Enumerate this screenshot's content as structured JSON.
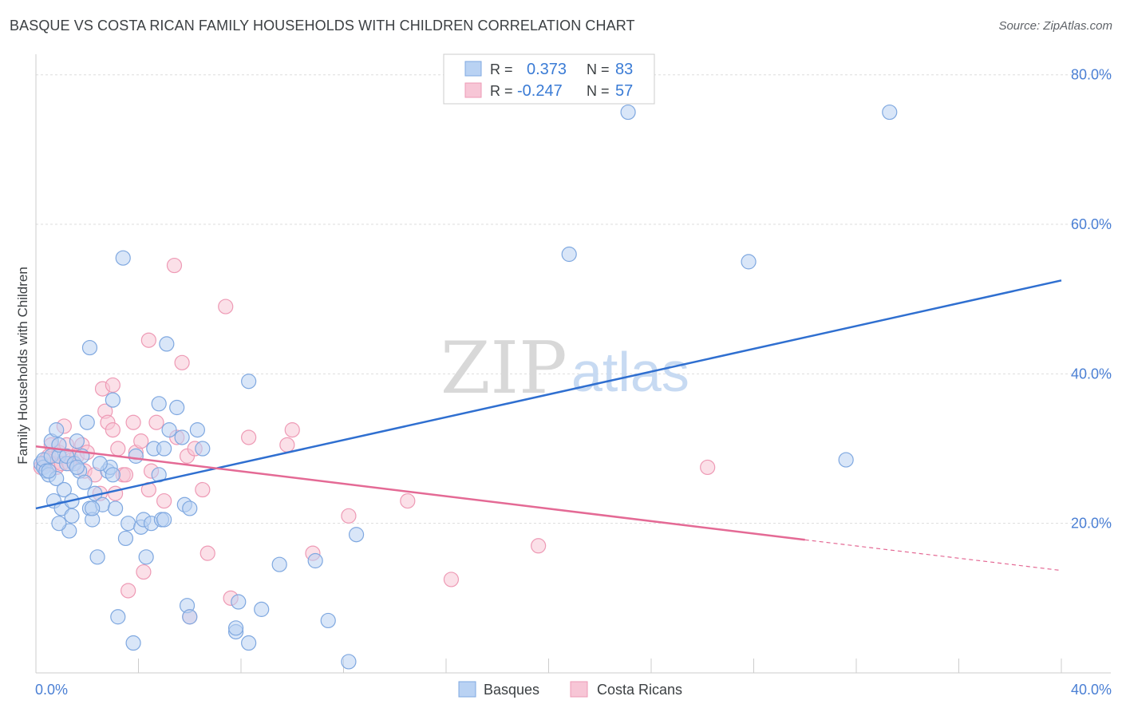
{
  "header": {
    "title": "BASQUE VS COSTA RICAN FAMILY HOUSEHOLDS WITH CHILDREN CORRELATION CHART",
    "source": "Source: ZipAtlas.com"
  },
  "watermark": {
    "zip": "ZIP",
    "atlas": "atlas"
  },
  "stats": {
    "blue": {
      "r_label": "R =",
      "r_value": "0.373",
      "n_label": "N =",
      "n_value": "83"
    },
    "pink": {
      "r_label": "R =",
      "r_value": "-0.247",
      "n_label": "N =",
      "n_value": "57"
    }
  },
  "legend": {
    "series1": "Basques",
    "series2": "Costa Ricans"
  },
  "colors": {
    "blue_fill": "#b9d2f3",
    "blue_stroke": "#7fa8e0",
    "blue_line": "#2f6fd0",
    "pink_fill": "#f7c6d6",
    "pink_stroke": "#ee9ab5",
    "pink_line": "#e46a95",
    "grid": "#dddddd",
    "tick_text": "#4a7fd4"
  },
  "chart_data": {
    "type": "scatter",
    "title": "BASQUE VS COSTA RICAN FAMILY HOUSEHOLDS WITH CHILDREN CORRELATION CHART",
    "xlabel": "",
    "ylabel": "Family Households with Children",
    "xlim": [
      0,
      40
    ],
    "ylim": [
      0,
      82
    ],
    "x_tick_labels": [
      "0.0%",
      "40.0%"
    ],
    "y_ticks": [
      20,
      40,
      60,
      80
    ],
    "y_tick_labels": [
      "20.0%",
      "40.0%",
      "60.0%",
      "80.0%"
    ],
    "grid": true,
    "series": [
      {
        "name": "Basques",
        "r": 0.373,
        "n": 83,
        "trend": {
          "x0": 0,
          "y0": 22.0,
          "x1": 40,
          "y1": 52.5
        },
        "points": [
          [
            0.2,
            28
          ],
          [
            0.3,
            27.5
          ],
          [
            0.3,
            28.5
          ],
          [
            0.4,
            27
          ],
          [
            0.5,
            26.5
          ],
          [
            0.6,
            29
          ],
          [
            0.6,
            31
          ],
          [
            0.7,
            23
          ],
          [
            0.8,
            26
          ],
          [
            0.8,
            32.5
          ],
          [
            0.9,
            29
          ],
          [
            0.9,
            30.5
          ],
          [
            1.0,
            22
          ],
          [
            1.1,
            24.5
          ],
          [
            1.2,
            28
          ],
          [
            1.2,
            29
          ],
          [
            1.3,
            19
          ],
          [
            1.4,
            21
          ],
          [
            1.4,
            23
          ],
          [
            1.5,
            28
          ],
          [
            1.6,
            31
          ],
          [
            1.7,
            27
          ],
          [
            1.8,
            29
          ],
          [
            1.9,
            25.5
          ],
          [
            2.1,
            22
          ],
          [
            2.2,
            20.5
          ],
          [
            2.3,
            24
          ],
          [
            2.4,
            15.5
          ],
          [
            2.6,
            22.5
          ],
          [
            2.8,
            27
          ],
          [
            2.9,
            27.5
          ],
          [
            3.0,
            36.5
          ],
          [
            3.1,
            22
          ],
          [
            3.4,
            55.5
          ],
          [
            3.5,
            18
          ],
          [
            3.6,
            20
          ],
          [
            3.8,
            4
          ],
          [
            3.9,
            29
          ],
          [
            4.1,
            19.5
          ],
          [
            4.2,
            20.5
          ],
          [
            4.3,
            15.5
          ],
          [
            4.5,
            20
          ],
          [
            4.6,
            30
          ],
          [
            4.8,
            36
          ],
          [
            4.9,
            20.5
          ],
          [
            5.0,
            30
          ],
          [
            5.1,
            44
          ],
          [
            5.2,
            32.5
          ],
          [
            5.5,
            35.5
          ],
          [
            5.7,
            31.5
          ],
          [
            5.8,
            22.5
          ],
          [
            5.9,
            9
          ],
          [
            6.0,
            7.5
          ],
          [
            6.3,
            32.5
          ],
          [
            7.8,
            5.5
          ],
          [
            7.8,
            6
          ],
          [
            7.9,
            9.5
          ],
          [
            8.3,
            4
          ],
          [
            8.3,
            39
          ],
          [
            8.8,
            8.5
          ],
          [
            9.5,
            14.5
          ],
          [
            10.9,
            15
          ],
          [
            11.4,
            7
          ],
          [
            12.2,
            1.5
          ],
          [
            12.5,
            18.5
          ],
          [
            2.1,
            43.5
          ],
          [
            2.2,
            22
          ],
          [
            3.0,
            26.5
          ],
          [
            1.6,
            27.5
          ],
          [
            2.0,
            33.5
          ],
          [
            5.0,
            20.5
          ],
          [
            4.8,
            26.5
          ],
          [
            2.5,
            28
          ],
          [
            0.5,
            27
          ],
          [
            6.0,
            22
          ],
          [
            6.5,
            30
          ],
          [
            3.2,
            7.5
          ],
          [
            23.1,
            75
          ],
          [
            33.3,
            75
          ],
          [
            20.8,
            56
          ],
          [
            27.8,
            55
          ],
          [
            31.6,
            28.5
          ],
          [
            0.9,
            20
          ]
        ]
      },
      {
        "name": "Costa Ricans",
        "r": -0.247,
        "n": 57,
        "trend": {
          "x0": 0,
          "y0": 30.3,
          "x1": 30,
          "y1": 17.8,
          "dash_to_x": 40,
          "dash_to_y": 13.7
        },
        "points": [
          [
            0.2,
            27.5
          ],
          [
            0.3,
            28
          ],
          [
            0.5,
            29
          ],
          [
            0.6,
            30.5
          ],
          [
            0.7,
            28
          ],
          [
            0.8,
            27.5
          ],
          [
            0.9,
            29.5
          ],
          [
            1.0,
            28
          ],
          [
            1.1,
            33
          ],
          [
            1.2,
            30.5
          ],
          [
            1.4,
            28.5
          ],
          [
            1.6,
            29
          ],
          [
            1.8,
            30.5
          ],
          [
            1.9,
            27
          ],
          [
            2.0,
            29.5
          ],
          [
            2.3,
            26.5
          ],
          [
            2.6,
            38
          ],
          [
            2.7,
            35
          ],
          [
            2.8,
            33.5
          ],
          [
            3.0,
            32.5
          ],
          [
            3.0,
            38.5
          ],
          [
            3.2,
            30
          ],
          [
            3.4,
            26.5
          ],
          [
            3.5,
            26.5
          ],
          [
            3.6,
            11
          ],
          [
            3.8,
            33.5
          ],
          [
            3.9,
            29.5
          ],
          [
            4.1,
            31
          ],
          [
            4.2,
            13.5
          ],
          [
            4.4,
            44.5
          ],
          [
            4.4,
            24.5
          ],
          [
            4.7,
            33.5
          ],
          [
            5.0,
            23
          ],
          [
            5.4,
            54.5
          ],
          [
            5.5,
            31.5
          ],
          [
            5.7,
            41.5
          ],
          [
            5.9,
            29
          ],
          [
            6.0,
            7.5
          ],
          [
            6.2,
            30
          ],
          [
            6.5,
            24.5
          ],
          [
            6.7,
            16
          ],
          [
            7.4,
            49
          ],
          [
            7.6,
            10
          ],
          [
            8.3,
            31.5
          ],
          [
            9.8,
            30.5
          ],
          [
            10.0,
            32.5
          ],
          [
            10.8,
            16
          ],
          [
            12.2,
            21
          ],
          [
            14.5,
            23
          ],
          [
            16.2,
            12.5
          ],
          [
            19.6,
            17
          ],
          [
            26.2,
            27.5
          ],
          [
            2.5,
            24
          ],
          [
            0.4,
            28.5
          ],
          [
            1.3,
            28
          ],
          [
            4.5,
            27
          ],
          [
            3.1,
            24
          ]
        ]
      }
    ]
  }
}
